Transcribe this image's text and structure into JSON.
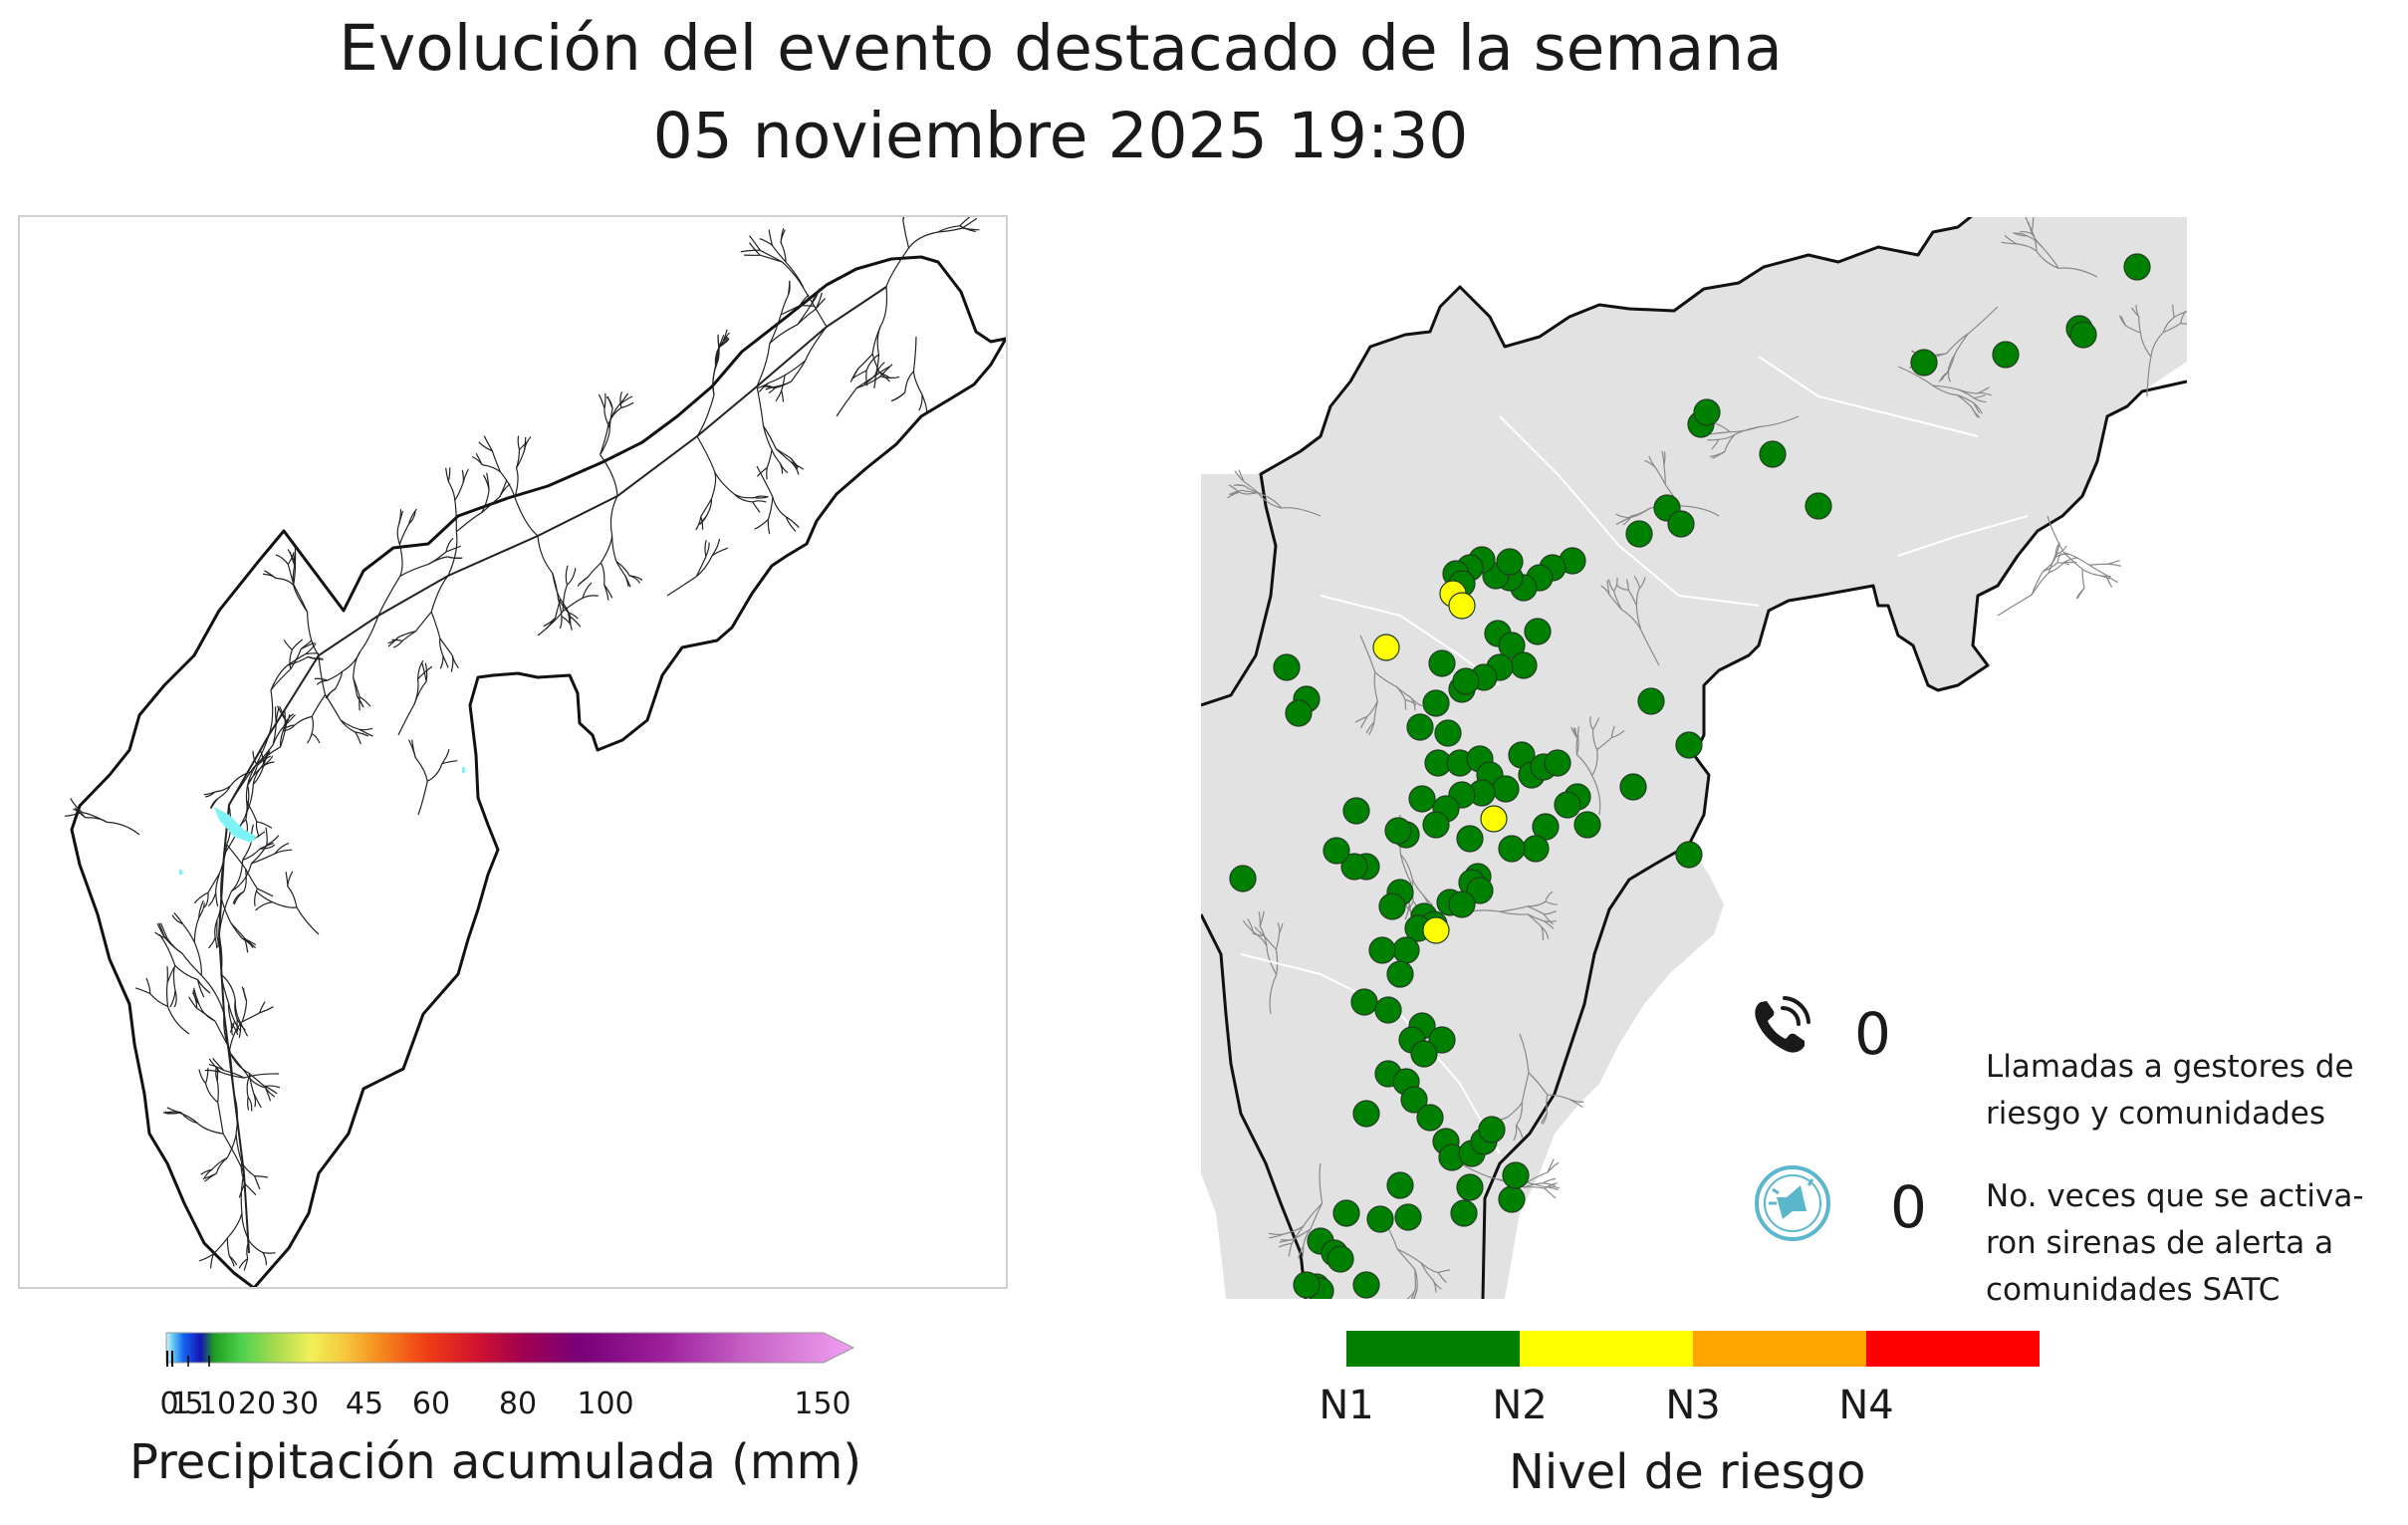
{
  "title": {
    "line1": "Evolución del evento destacado de la semana",
    "line2": "05 noviembre 2025 19:30"
  },
  "precip_map": {
    "colorbar": {
      "label": "Precipitación acumulada (mm)",
      "ticks": [
        "0",
        "1",
        "5",
        "10",
        "20",
        "30",
        "45",
        "60",
        "80",
        "100",
        "150"
      ],
      "colors": [
        "#d4f4fb",
        "#62c8f3",
        "#1464f0",
        "#1414b4",
        "#1ea01e",
        "#4fd24f",
        "#a8dc50",
        "#f0f05a",
        "#f5c83c",
        "#f58c1e",
        "#f03c14",
        "#d2142d",
        "#a00050",
        "#780078",
        "#9b1e9b",
        "#c864c8",
        "#f0a0f0"
      ]
    },
    "rain_cells": "cyan"
  },
  "risk_map": {
    "stations_yellow_count": 5,
    "legend": {
      "label": "Nivel de riesgo",
      "levels": [
        {
          "name": "N1",
          "color": "#008000"
        },
        {
          "name": "N2",
          "color": "#ffff00"
        },
        {
          "name": "N3",
          "color": "#ffa500"
        },
        {
          "name": "N4",
          "color": "#ff0000"
        }
      ]
    },
    "counters": {
      "calls": {
        "icon": "phone-icon",
        "value": "0",
        "label": "Llamadas a gestores de riesgo y comunidades"
      },
      "sirens": {
        "icon": "siren-icon",
        "value": "0",
        "label": "No. veces que se activa-ron sirenas de alerta a comunidades SATC"
      }
    }
  }
}
